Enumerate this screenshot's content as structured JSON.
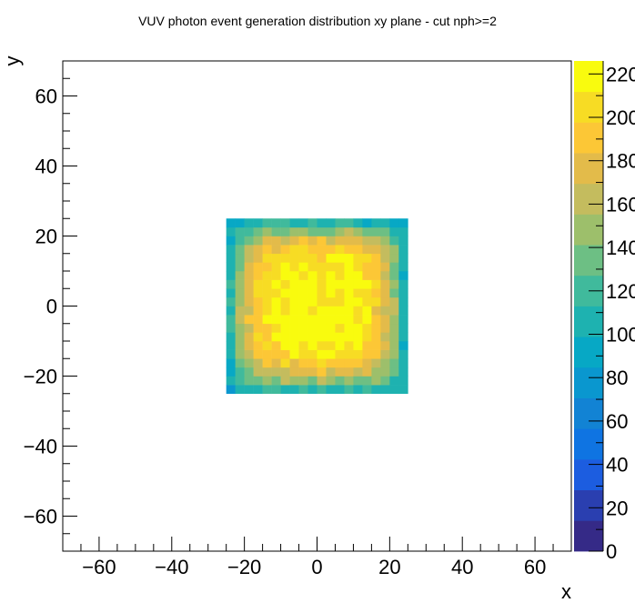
{
  "chart_data": {
    "type": "heatmap",
    "title": "VUV photon event generation distribution xy plane - cut nph>=2",
    "xlabel": "x",
    "ylabel": "y",
    "xlim": [
      -70,
      70
    ],
    "ylim": [
      -70,
      70
    ],
    "x_ticks": [
      -60,
      -40,
      -20,
      0,
      20,
      40,
      60
    ],
    "y_ticks": [
      -60,
      -40,
      -20,
      0,
      20,
      40,
      60
    ],
    "x_tick_labels": [
      "−60",
      "−40",
      "−20",
      "0",
      "20",
      "40",
      "60"
    ],
    "y_tick_labels": [
      "−60",
      "−40",
      "−20",
      "0",
      "20",
      "40",
      "60"
    ],
    "z_range": [
      0,
      226
    ],
    "z_ticks": [
      0,
      20,
      40,
      60,
      80,
      100,
      120,
      140,
      160,
      180,
      200,
      220
    ],
    "z_tick_labels": [
      "0",
      "20",
      "40",
      "60",
      "80",
      "100",
      "120",
      "140",
      "160",
      "180",
      "200",
      "220"
    ],
    "filled_region": {
      "x": [
        -25,
        25
      ],
      "y": [
        -25,
        25
      ]
    },
    "bin_width": 2.5,
    "peak_value": 220,
    "edge_value": 85,
    "grid": false,
    "colorbar": "right",
    "palette": [
      "#352a87",
      "#2a3fb0",
      "#1c5de0",
      "#0f74e2",
      "#1283d4",
      "#0a97cf",
      "#07a8c5",
      "#1eb2b0",
      "#40ba9c",
      "#6dbf84",
      "#9dbf6b",
      "#c4bc5e",
      "#e3bb4a",
      "#fcc736",
      "#f7dc24",
      "#f9fb0e"
    ]
  }
}
